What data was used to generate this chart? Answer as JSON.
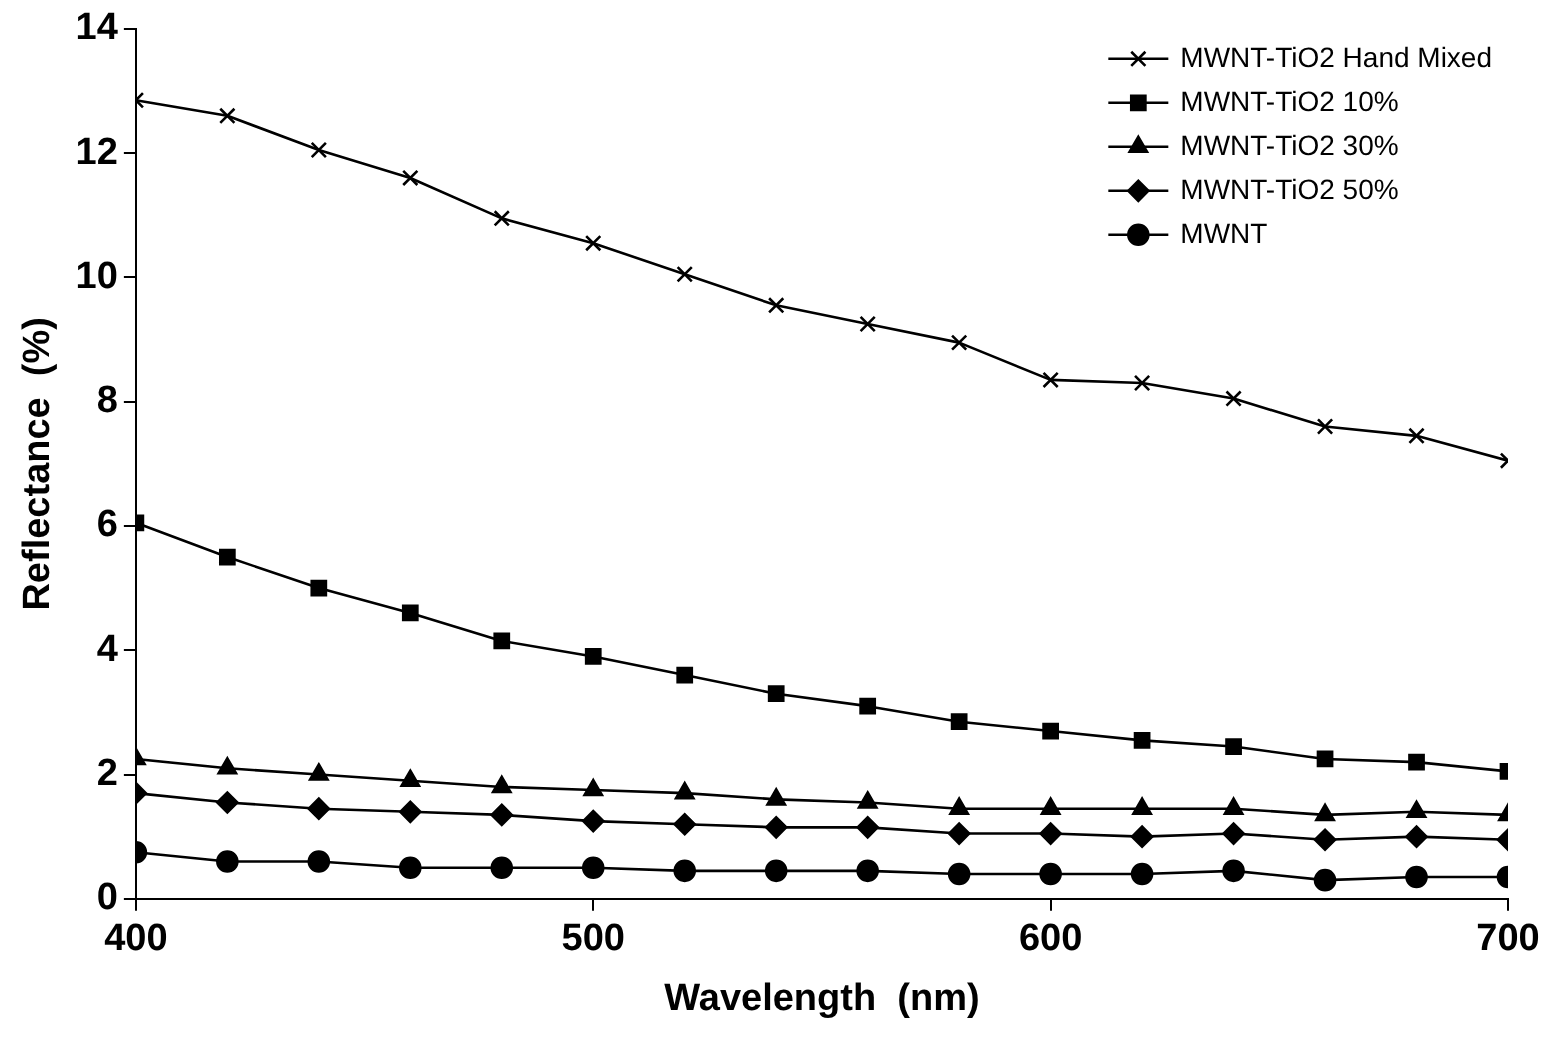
{
  "chart_data": {
    "type": "line",
    "xlabel": "Wavelength  (nm)",
    "ylabel": "Reflectance  (%)",
    "x": [
      400,
      420,
      440,
      460,
      480,
      500,
      520,
      540,
      560,
      580,
      600,
      620,
      640,
      660,
      680,
      700
    ],
    "xlim": [
      400,
      700
    ],
    "xticks": [
      400,
      500,
      600,
      700
    ],
    "ylim": [
      0,
      14
    ],
    "yticks": [
      0,
      2,
      4,
      6,
      8,
      10,
      12,
      14
    ],
    "grid": false,
    "legend": "top right",
    "line_style": "solid",
    "series": [
      {
        "name": "MWNT-TiO2 Hand Mixed",
        "color": "#000000",
        "marker": "cross",
        "values": [
          12.85,
          12.6,
          12.05,
          11.6,
          10.95,
          10.55,
          10.05,
          9.55,
          9.25,
          8.95,
          8.35,
          8.3,
          8.05,
          7.6,
          7.45,
          7.05
        ]
      },
      {
        "name": "MWNT-TiO2 10%",
        "color": "#000000",
        "marker": "square",
        "values": [
          6.05,
          5.5,
          5.0,
          4.6,
          4.15,
          3.9,
          3.6,
          3.3,
          3.1,
          2.85,
          2.7,
          2.55,
          2.45,
          2.25,
          2.2,
          2.05
        ]
      },
      {
        "name": "MWNT-TiO2 30%",
        "color": "#000000",
        "marker": "triangle",
        "values": [
          2.25,
          2.1,
          2.0,
          1.9,
          1.8,
          1.75,
          1.7,
          1.6,
          1.55,
          1.45,
          1.45,
          1.45,
          1.45,
          1.35,
          1.4,
          1.35
        ]
      },
      {
        "name": "MWNT-TiO2 50%",
        "color": "#000000",
        "marker": "diamond",
        "values": [
          1.7,
          1.55,
          1.45,
          1.4,
          1.35,
          1.25,
          1.2,
          1.15,
          1.15,
          1.05,
          1.05,
          1.0,
          1.05,
          0.95,
          1.0,
          0.95
        ]
      },
      {
        "name": "MWNT",
        "color": "#000000",
        "marker": "circle",
        "values": [
          0.75,
          0.6,
          0.6,
          0.5,
          0.5,
          0.5,
          0.45,
          0.45,
          0.45,
          0.4,
          0.4,
          0.4,
          0.45,
          0.3,
          0.35,
          0.35
        ]
      }
    ]
  }
}
